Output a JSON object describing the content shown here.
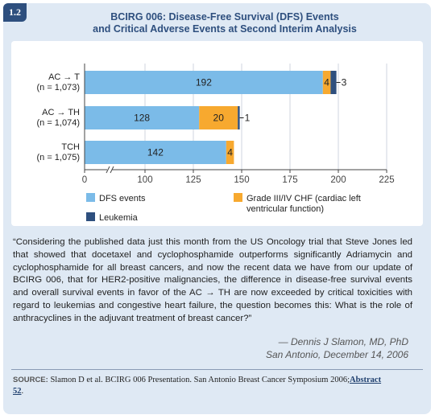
{
  "figure": {
    "number": "1.2",
    "title_line1": "BCIRG 006: Disease-Free Survival (DFS) Events",
    "title_line2": "and Critical Adverse Events at Second Interim Analysis"
  },
  "chart_data": {
    "type": "bar",
    "orientation": "horizontal",
    "stacked": true,
    "categories": [
      {
        "line1": "AC → T",
        "line2": "(n = 1,073)"
      },
      {
        "line1": "AC → TH",
        "line2": "(n = 1,074)"
      },
      {
        "line1": "TCH",
        "line2": "(n = 1,075)"
      }
    ],
    "series": [
      {
        "name": "DFS events",
        "color": "#7bbbe8",
        "values": [
          192,
          128,
          142
        ]
      },
      {
        "name": "Grade III/IV CHF (cardiac left ventricular function)",
        "color": "#f7a92f",
        "values": [
          4,
          20,
          4
        ]
      },
      {
        "name": "Leukemia",
        "color": "#2e4f7e",
        "values": [
          3,
          1,
          0
        ]
      }
    ],
    "data_labels": [
      [
        "192",
        "4",
        "3"
      ],
      [
        "128",
        "20",
        "1"
      ],
      [
        "142",
        "4",
        ""
      ]
    ],
    "xlim": [
      0,
      225
    ],
    "x_ticks": [
      0,
      100,
      125,
      150,
      175,
      200,
      225
    ],
    "x_tick_labels": [
      "0",
      "100",
      "125",
      "150",
      "175",
      "200",
      "225"
    ],
    "axis_break": true,
    "legend_position": "bottom"
  },
  "quote": {
    "text": "“Considering the published data just this month from the US Oncology trial that Steve Jones led that showed that docetaxel and cyclophosphamide outperforms significantly Adriamycin and cyclophosphamide for all breast cancers, and now the recent data we have from our update of BCIRG 006, that for HER2-positive malignancies, the difference in disease-free survival events and overall survival events in favor of the AC → TH are now exceeded by critical toxicities with regard to leukemias and congestive heart failure, the question becomes this: What is the role of anthracyclines in the adjuvant treatment of breast cancer?”",
    "author": "— Dennis J Slamon, MD, PhD",
    "place_date": "San Antonio, December 14, 2006"
  },
  "source": {
    "label": "SOURCE:",
    "text": "Slamon D et al. BCIRG 006 Presentation. San Antonio Breast Cancer Symposium 2006;",
    "link_text": "Abstract 52",
    "trailing": "."
  },
  "colors": {
    "background": "#dfe9f4",
    "title": "#2e4f7e",
    "dfs": "#7bbbe8",
    "chf": "#f7a92f",
    "leukemia": "#2e4f7e"
  }
}
